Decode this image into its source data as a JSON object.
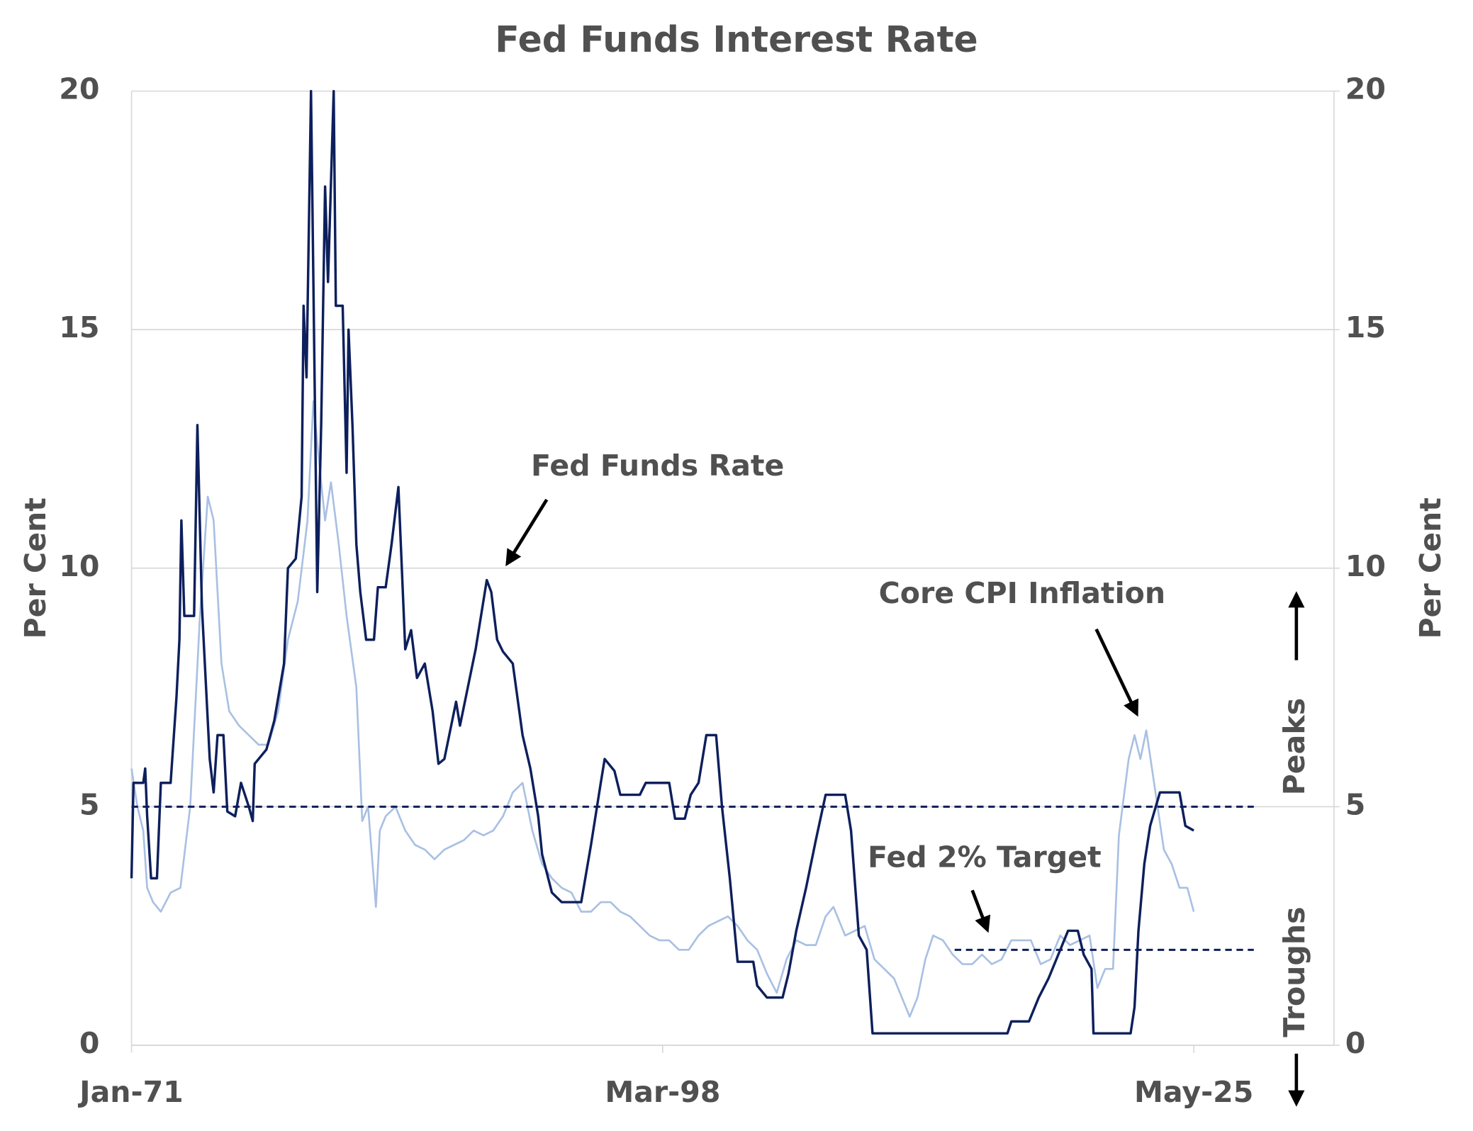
{
  "chart_data": {
    "type": "line",
    "title": "Fed Funds Interest Rate",
    "ylabel": "Per Cent",
    "y2label": "Per Cent",
    "xlim": [
      1971,
      2032.5
    ],
    "xticks": [
      {
        "value": 1971,
        "label": "Jan-71"
      },
      {
        "value": 1998.167,
        "label": "Mar-98"
      },
      {
        "value": 2025.333,
        "label": "May-25"
      }
    ],
    "ylim": [
      0,
      20
    ],
    "yticks": [
      0,
      5,
      10,
      15,
      20
    ],
    "y2lim": [
      0,
      20
    ],
    "y2ticks": [
      0,
      5,
      10,
      15,
      20
    ],
    "grid": true,
    "series": [
      {
        "name": "Core CPI Inflation",
        "color": "#a9c0e3",
        "x": [
          1971.0,
          1971.3,
          1971.6,
          1971.8,
          1972.1,
          1972.5,
          1973.0,
          1973.5,
          1974.0,
          1974.5,
          1974.9,
          1975.2,
          1975.6,
          1976.0,
          1976.5,
          1977.0,
          1977.5,
          1978.0,
          1978.5,
          1979.0,
          1979.5,
          1980.0,
          1980.3,
          1980.6,
          1980.9,
          1981.2,
          1981.6,
          1982.0,
          1982.5,
          1982.8,
          1983.1,
          1983.5,
          1983.7,
          1984.0,
          1984.5,
          1985.0,
          1985.5,
          1986.0,
          1986.5,
          1987.0,
          1987.5,
          1988.0,
          1988.5,
          1989.0,
          1989.5,
          1990.0,
          1990.5,
          1991.0,
          1991.5,
          1992.0,
          1992.5,
          1993.0,
          1993.5,
          1994.0,
          1994.5,
          1995.0,
          1995.5,
          1996.0,
          1996.5,
          1997.0,
          1997.5,
          1998.0,
          1998.5,
          1999.0,
          1999.5,
          2000.0,
          2000.5,
          2001.0,
          2001.5,
          2002.0,
          2002.5,
          2003.0,
          2003.5,
          2004.0,
          2004.5,
          2005.0,
          2005.5,
          2006.0,
          2006.5,
          2006.9,
          2007.5,
          2008.0,
          2008.5,
          2009.0,
          2009.5,
          2010.0,
          2010.5,
          2010.8,
          2011.2,
          2011.6,
          2012.0,
          2012.5,
          2013.0,
          2013.5,
          2014.0,
          2014.5,
          2015.0,
          2015.5,
          2016.0,
          2016.5,
          2017.0,
          2017.5,
          2018.0,
          2018.5,
          2019.0,
          2019.5,
          2020.0,
          2020.4,
          2020.8,
          2021.2,
          2021.5,
          2022.0,
          2022.3,
          2022.6,
          2022.9,
          2023.3,
          2023.8,
          2024.2,
          2024.6,
          2025.0,
          2025.33
        ],
        "values": [
          5.8,
          5.0,
          4.5,
          3.3,
          3.0,
          2.8,
          3.2,
          3.3,
          5.0,
          9.0,
          11.5,
          11.0,
          8.0,
          7.0,
          6.7,
          6.5,
          6.3,
          6.3,
          7.0,
          8.5,
          9.3,
          11.0,
          13.5,
          12.2,
          11.0,
          11.8,
          10.5,
          9.0,
          7.5,
          4.7,
          5.0,
          2.9,
          4.5,
          4.8,
          5.0,
          4.5,
          4.2,
          4.1,
          3.9,
          4.1,
          4.2,
          4.3,
          4.5,
          4.4,
          4.5,
          4.8,
          5.3,
          5.5,
          4.5,
          3.8,
          3.5,
          3.3,
          3.2,
          2.8,
          2.8,
          3.0,
          3.0,
          2.8,
          2.7,
          2.5,
          2.3,
          2.2,
          2.2,
          2.0,
          2.0,
          2.3,
          2.5,
          2.6,
          2.7,
          2.5,
          2.2,
          2.0,
          1.5,
          1.1,
          1.8,
          2.2,
          2.1,
          2.1,
          2.7,
          2.9,
          2.3,
          2.4,
          2.5,
          1.8,
          1.6,
          1.4,
          0.9,
          0.6,
          1.0,
          1.8,
          2.3,
          2.2,
          1.9,
          1.7,
          1.7,
          1.9,
          1.7,
          1.8,
          2.2,
          2.2,
          2.2,
          1.7,
          1.8,
          2.3,
          2.1,
          2.2,
          2.3,
          1.2,
          1.6,
          1.6,
          4.4,
          6.0,
          6.5,
          6.0,
          6.6,
          5.5,
          4.1,
          3.8,
          3.3,
          3.3,
          2.8
        ]
      },
      {
        "name": "Fed Funds Rate",
        "color": "#0d1f5c",
        "x": [
          1971.0,
          1971.1,
          1971.6,
          1971.7,
          1971.8,
          1972.0,
          1972.3,
          1972.5,
          1973.0,
          1973.3,
          1973.45,
          1973.55,
          1973.7,
          1974.2,
          1974.37,
          1974.6,
          1975.0,
          1975.2,
          1975.4,
          1975.7,
          1975.9,
          1976.3,
          1976.6,
          1977.0,
          1977.2,
          1977.3,
          1977.9,
          1978.3,
          1978.8,
          1979.0,
          1979.4,
          1979.7,
          1979.8,
          1979.95,
          1980.18,
          1980.5,
          1980.7,
          1980.9,
          1981.05,
          1981.34,
          1981.45,
          1981.8,
          1982.0,
          1982.1,
          1982.3,
          1982.5,
          1982.7,
          1983.0,
          1983.4,
          1983.6,
          1984.0,
          1984.3,
          1984.65,
          1985.0,
          1985.3,
          1985.6,
          1986.0,
          1986.4,
          1986.7,
          1987.0,
          1987.4,
          1987.6,
          1987.8,
          1988.2,
          1988.6,
          1989.17,
          1989.4,
          1989.7,
          1990.0,
          1990.5,
          1991.0,
          1991.4,
          1991.8,
          1992.0,
          1992.5,
          1993.0,
          1994.0,
          1994.5,
          1995.0,
          1995.2,
          1995.7,
          1996.0,
          1997.0,
          1997.3,
          1998.5,
          1998.8,
          1999.3,
          1999.6,
          2000.0,
          2000.4,
          2000.9,
          2001.2,
          2001.6,
          2002.0,
          2002.8,
          2003.0,
          2003.5,
          2004.3,
          2004.6,
          2005.0,
          2005.5,
          2006.0,
          2006.5,
          2007.5,
          2007.8,
          2008.2,
          2008.6,
          2008.9,
          2015.8,
          2016.0,
          2016.9,
          2017.4,
          2017.9,
          2018.4,
          2018.9,
          2019.4,
          2019.7,
          2020.1,
          2020.2,
          2022.1,
          2022.3,
          2022.5,
          2022.8,
          2023.1,
          2023.6,
          2024.6,
          2024.9,
          2025.33
        ],
        "values": [
          3.5,
          5.5,
          5.5,
          5.8,
          4.8,
          3.5,
          3.5,
          5.5,
          5.5,
          7.3,
          8.5,
          11.0,
          9.0,
          9.0,
          13.0,
          9.2,
          6.0,
          5.3,
          6.5,
          6.5,
          4.9,
          4.8,
          5.5,
          5.0,
          4.7,
          5.9,
          6.2,
          6.8,
          8.0,
          10.0,
          10.2,
          11.5,
          15.5,
          14.0,
          20.0,
          9.5,
          13.0,
          18.0,
          16.0,
          20.0,
          15.5,
          15.5,
          12.0,
          15.0,
          13.0,
          10.5,
          9.5,
          8.5,
          8.5,
          9.6,
          9.6,
          10.5,
          11.7,
          8.3,
          8.7,
          7.7,
          8.0,
          7.0,
          5.9,
          6.0,
          6.8,
          7.2,
          6.7,
          7.5,
          8.3,
          9.75,
          9.5,
          8.5,
          8.25,
          8.0,
          6.5,
          5.8,
          4.8,
          4.0,
          3.2,
          3.0,
          3.0,
          4.2,
          5.5,
          6.0,
          5.75,
          5.25,
          5.25,
          5.5,
          5.5,
          4.75,
          4.75,
          5.25,
          5.5,
          6.5,
          6.5,
          5.0,
          3.5,
          1.75,
          1.75,
          1.25,
          1.0,
          1.0,
          1.5,
          2.4,
          3.3,
          4.3,
          5.25,
          5.25,
          4.5,
          2.3,
          2.0,
          0.25,
          0.25,
          0.5,
          0.5,
          1.0,
          1.4,
          1.9,
          2.4,
          2.4,
          1.9,
          1.6,
          0.25,
          0.25,
          0.8,
          2.4,
          3.8,
          4.6,
          5.3,
          5.3,
          4.6,
          4.5
        ]
      }
    ],
    "reference_lines": [
      {
        "y": 5,
        "x": [
          1971,
          2028.4
        ],
        "color": "#0d1f5c"
      },
      {
        "y": 2,
        "x": [
          2013.1,
          2028.4
        ],
        "color": "#0d1f5c",
        "label": "Fed 2% Target"
      }
    ],
    "annotations": [
      "Peaks",
      "Troughs"
    ]
  }
}
